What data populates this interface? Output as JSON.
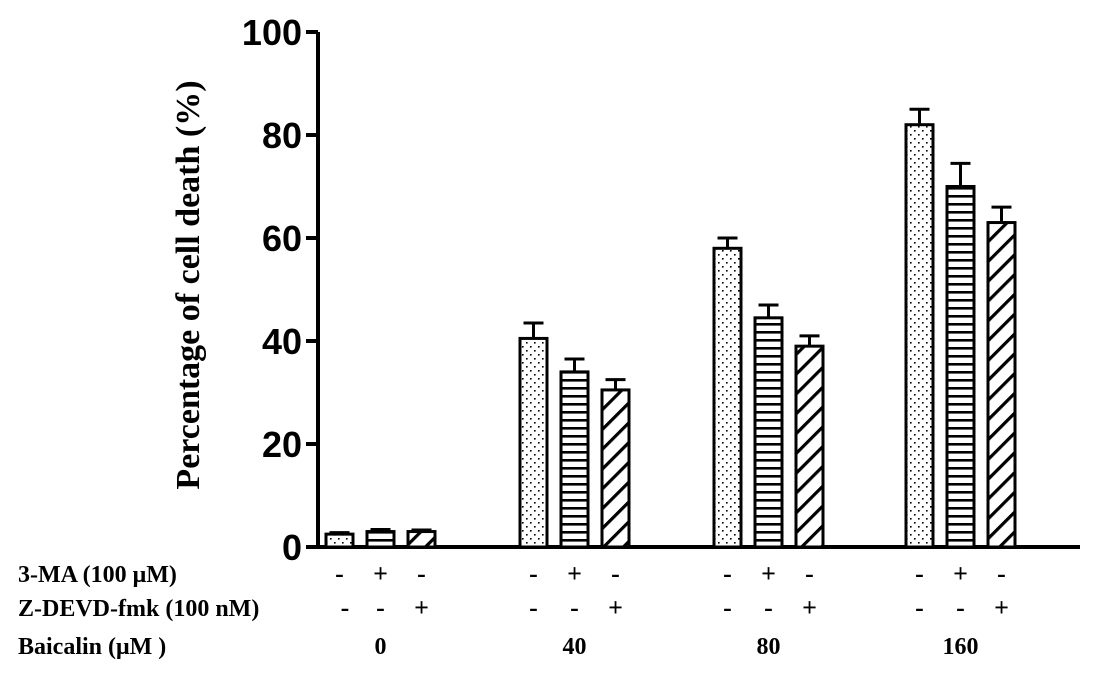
{
  "chart_data": {
    "type": "bar",
    "ylabel": "Percentage of cell death (%)",
    "ylim": [
      0,
      100
    ],
    "yticks": [
      "0",
      "20",
      "40",
      "60",
      "80",
      "100"
    ],
    "categories": [
      "0",
      "40",
      "80",
      "160"
    ],
    "series": [
      {
        "values": [
          2.5,
          40.5,
          58.0,
          82.0
        ],
        "errors": [
          0.3,
          3.0,
          2.0,
          3.0
        ],
        "pattern": "dots"
      },
      {
        "values": [
          3.0,
          34.0,
          44.5,
          70.0
        ],
        "errors": [
          0.4,
          2.5,
          2.5,
          4.5
        ],
        "pattern": "horizontal-lines"
      },
      {
        "values": [
          3.0,
          30.5,
          39.0,
          63.0
        ],
        "errors": [
          0.3,
          2.0,
          2.0,
          3.0
        ],
        "pattern": "diagonal-lines"
      }
    ],
    "treatment_rows": [
      {
        "label": "3-MA (100 μM)",
        "signs": [
          [
            "-",
            "+",
            "-"
          ],
          [
            "-",
            "+",
            "-"
          ],
          [
            "-",
            "+",
            "-"
          ],
          [
            "-",
            "+",
            "-"
          ]
        ]
      },
      {
        "label": "Z-DEVD-fmk (100 nM)",
        "leading_sign": "-",
        "signs": [
          [
            "-",
            "-",
            "+"
          ],
          [
            "-",
            "-",
            "+"
          ],
          [
            "-",
            "-",
            "+"
          ],
          [
            "-",
            "-",
            "+"
          ]
        ]
      },
      {
        "label": "Baicalin (μM )"
      }
    ],
    "colors": {
      "bar_stroke": "#000000",
      "bar_fill": "#ffffff"
    }
  }
}
